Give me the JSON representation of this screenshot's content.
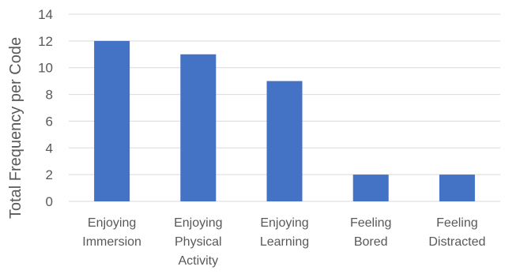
{
  "chart_data": {
    "type": "bar",
    "categories": [
      [
        "Enjoying",
        "Immersion"
      ],
      [
        "Enjoying",
        "Physical",
        "Activity"
      ],
      [
        "Enjoying",
        "Learning"
      ],
      [
        "Feeling",
        "Bored"
      ],
      [
        "Feeling",
        "Distracted"
      ]
    ],
    "values": [
      12,
      11,
      9,
      2,
      2
    ],
    "title": "",
    "xlabel": "",
    "ylabel": "Total Frequency per Code",
    "ylim": [
      0,
      14
    ],
    "yticks": [
      0,
      2,
      4,
      6,
      8,
      10,
      12,
      14
    ],
    "grid": true,
    "legend": "none",
    "bar_color": "#4472C4",
    "grid_color": "#d9d9d9",
    "text_color": "#595959"
  }
}
